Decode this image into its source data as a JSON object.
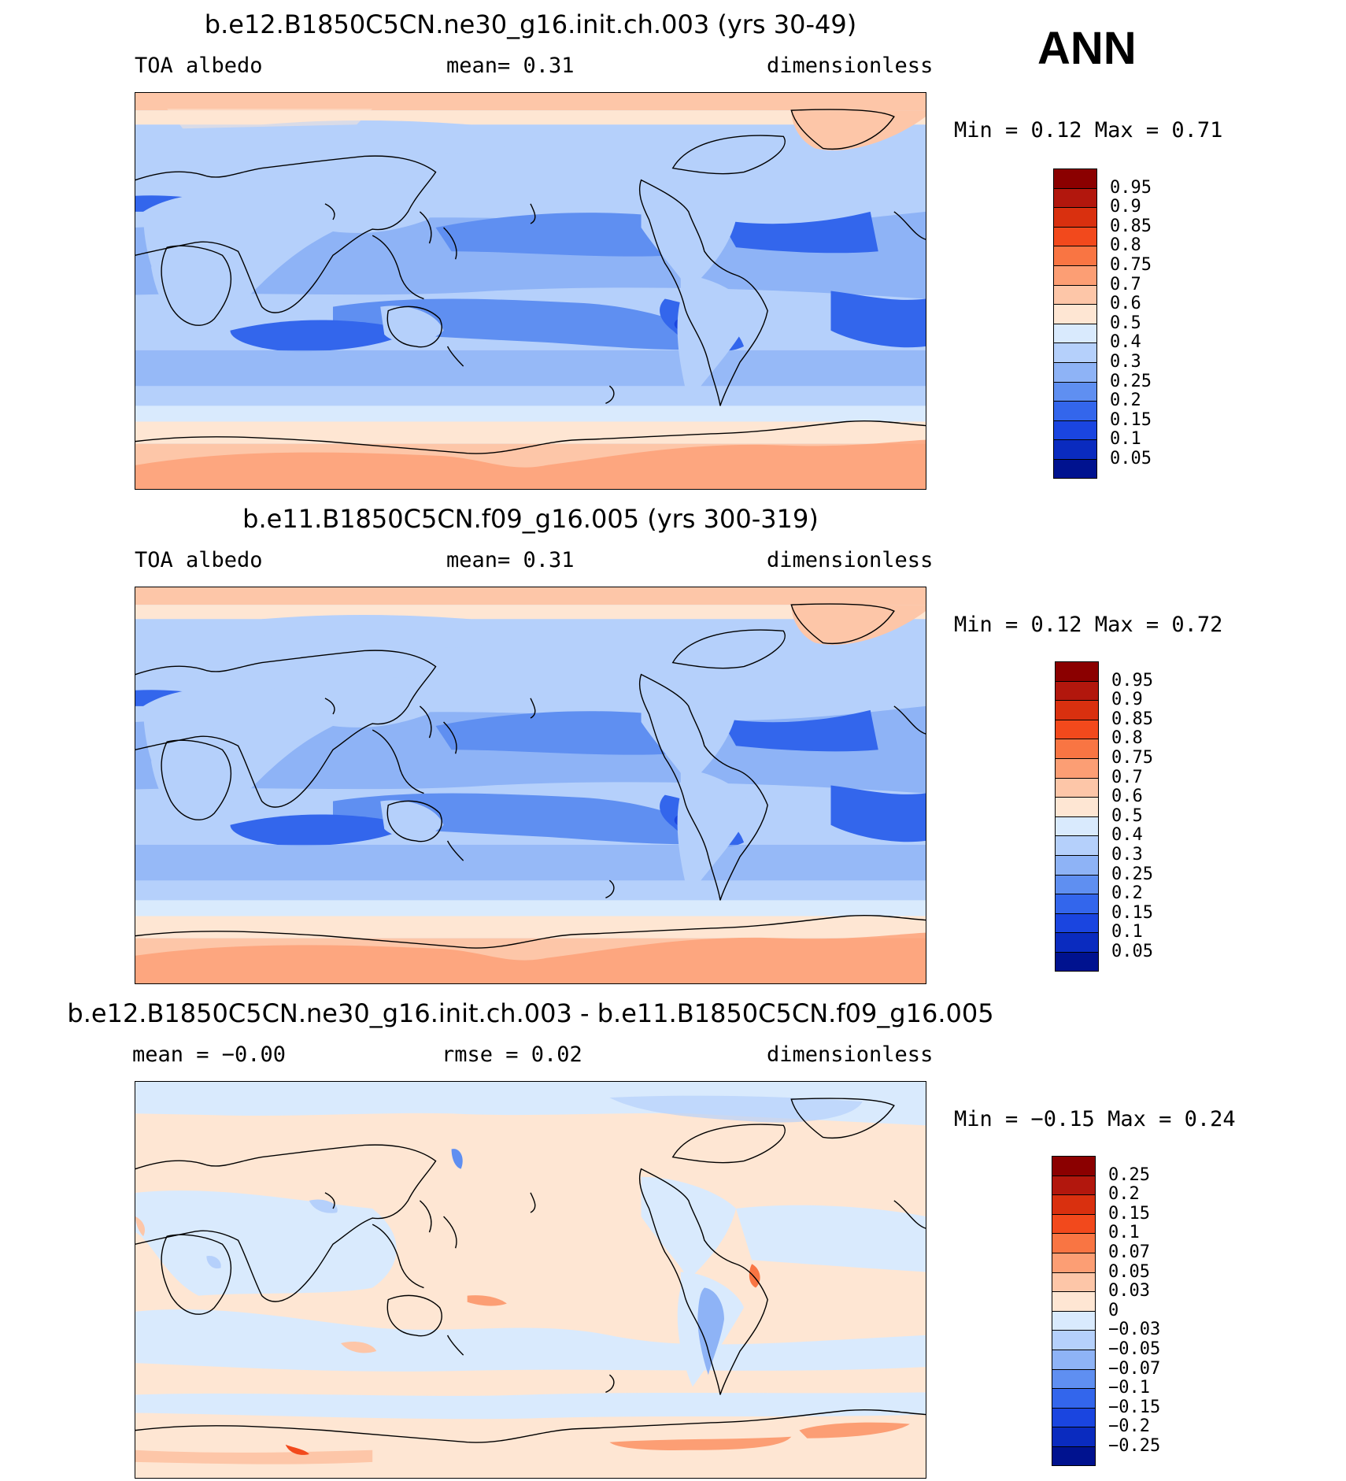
{
  "season": "ANN",
  "panels": [
    {
      "title": "b.e12.B1850C5CN.ne30_g16.init.ch.003 (yrs 30-49)",
      "left_label": "TOA albedo",
      "center_label": "mean=    0.31",
      "right_label": "dimensionless",
      "minmax": "Min =    0.12 Max =    0.71",
      "colorbar": {
        "colors": [
          "#8b0000",
          "#b2170d",
          "#d9300f",
          "#f2491c",
          "#f97543",
          "#fc9e74",
          "#fdc6a8",
          "#fee6d3",
          "#d9eafd",
          "#b5d0fb",
          "#8eb3f6",
          "#5f8ff1",
          "#3366ec",
          "#1a45e0",
          "#0a2bbf",
          "#00128f"
        ],
        "labels": [
          "0.95",
          "0.9",
          "0.85",
          "0.8",
          "0.75",
          "0.7",
          "0.6",
          "0.5",
          "0.4",
          "0.3",
          "0.25",
          "0.2",
          "0.15",
          "0.1",
          "0.05"
        ]
      }
    },
    {
      "title": "b.e11.B1850C5CN.f09_g16.005 (yrs 300-319)",
      "left_label": "TOA albedo",
      "center_label": "mean=    0.31",
      "right_label": "dimensionless",
      "minmax": "Min =    0.12 Max =    0.72",
      "colorbar": {
        "colors": [
          "#8b0000",
          "#b2170d",
          "#d9300f",
          "#f2491c",
          "#f97543",
          "#fc9e74",
          "#fdc6a8",
          "#fee6d3",
          "#d9eafd",
          "#b5d0fb",
          "#8eb3f6",
          "#5f8ff1",
          "#3366ec",
          "#1a45e0",
          "#0a2bbf",
          "#00128f"
        ],
        "labels": [
          "0.95",
          "0.9",
          "0.85",
          "0.8",
          "0.75",
          "0.7",
          "0.6",
          "0.5",
          "0.4",
          "0.3",
          "0.25",
          "0.2",
          "0.15",
          "0.1",
          "0.05"
        ]
      }
    },
    {
      "title": "b.e12.B1850C5CN.ne30_g16.init.ch.003 - b.e11.B1850C5CN.f09_g16.005",
      "left_label": "mean =  −0.00",
      "center_label": "rmse =    0.02",
      "right_label": "dimensionless",
      "minmax": "Min =  −0.15 Max =    0.24",
      "colorbar": {
        "colors": [
          "#8b0000",
          "#b2170d",
          "#d9300f",
          "#f2491c",
          "#f97543",
          "#fc9e74",
          "#fdc6a8",
          "#fee6d3",
          "#d9eafd",
          "#b5d0fb",
          "#8eb3f6",
          "#5f8ff1",
          "#3366ec",
          "#1a45e0",
          "#0a2bbf",
          "#00128f"
        ],
        "labels": [
          "0.25",
          "0.2",
          "0.15",
          "0.1",
          "0.07",
          "0.05",
          "0.03",
          "0",
          "−0.03",
          "−0.05",
          "−0.07",
          "−0.1",
          "−0.15",
          "−0.2",
          "−0.25"
        ]
      }
    }
  ]
}
